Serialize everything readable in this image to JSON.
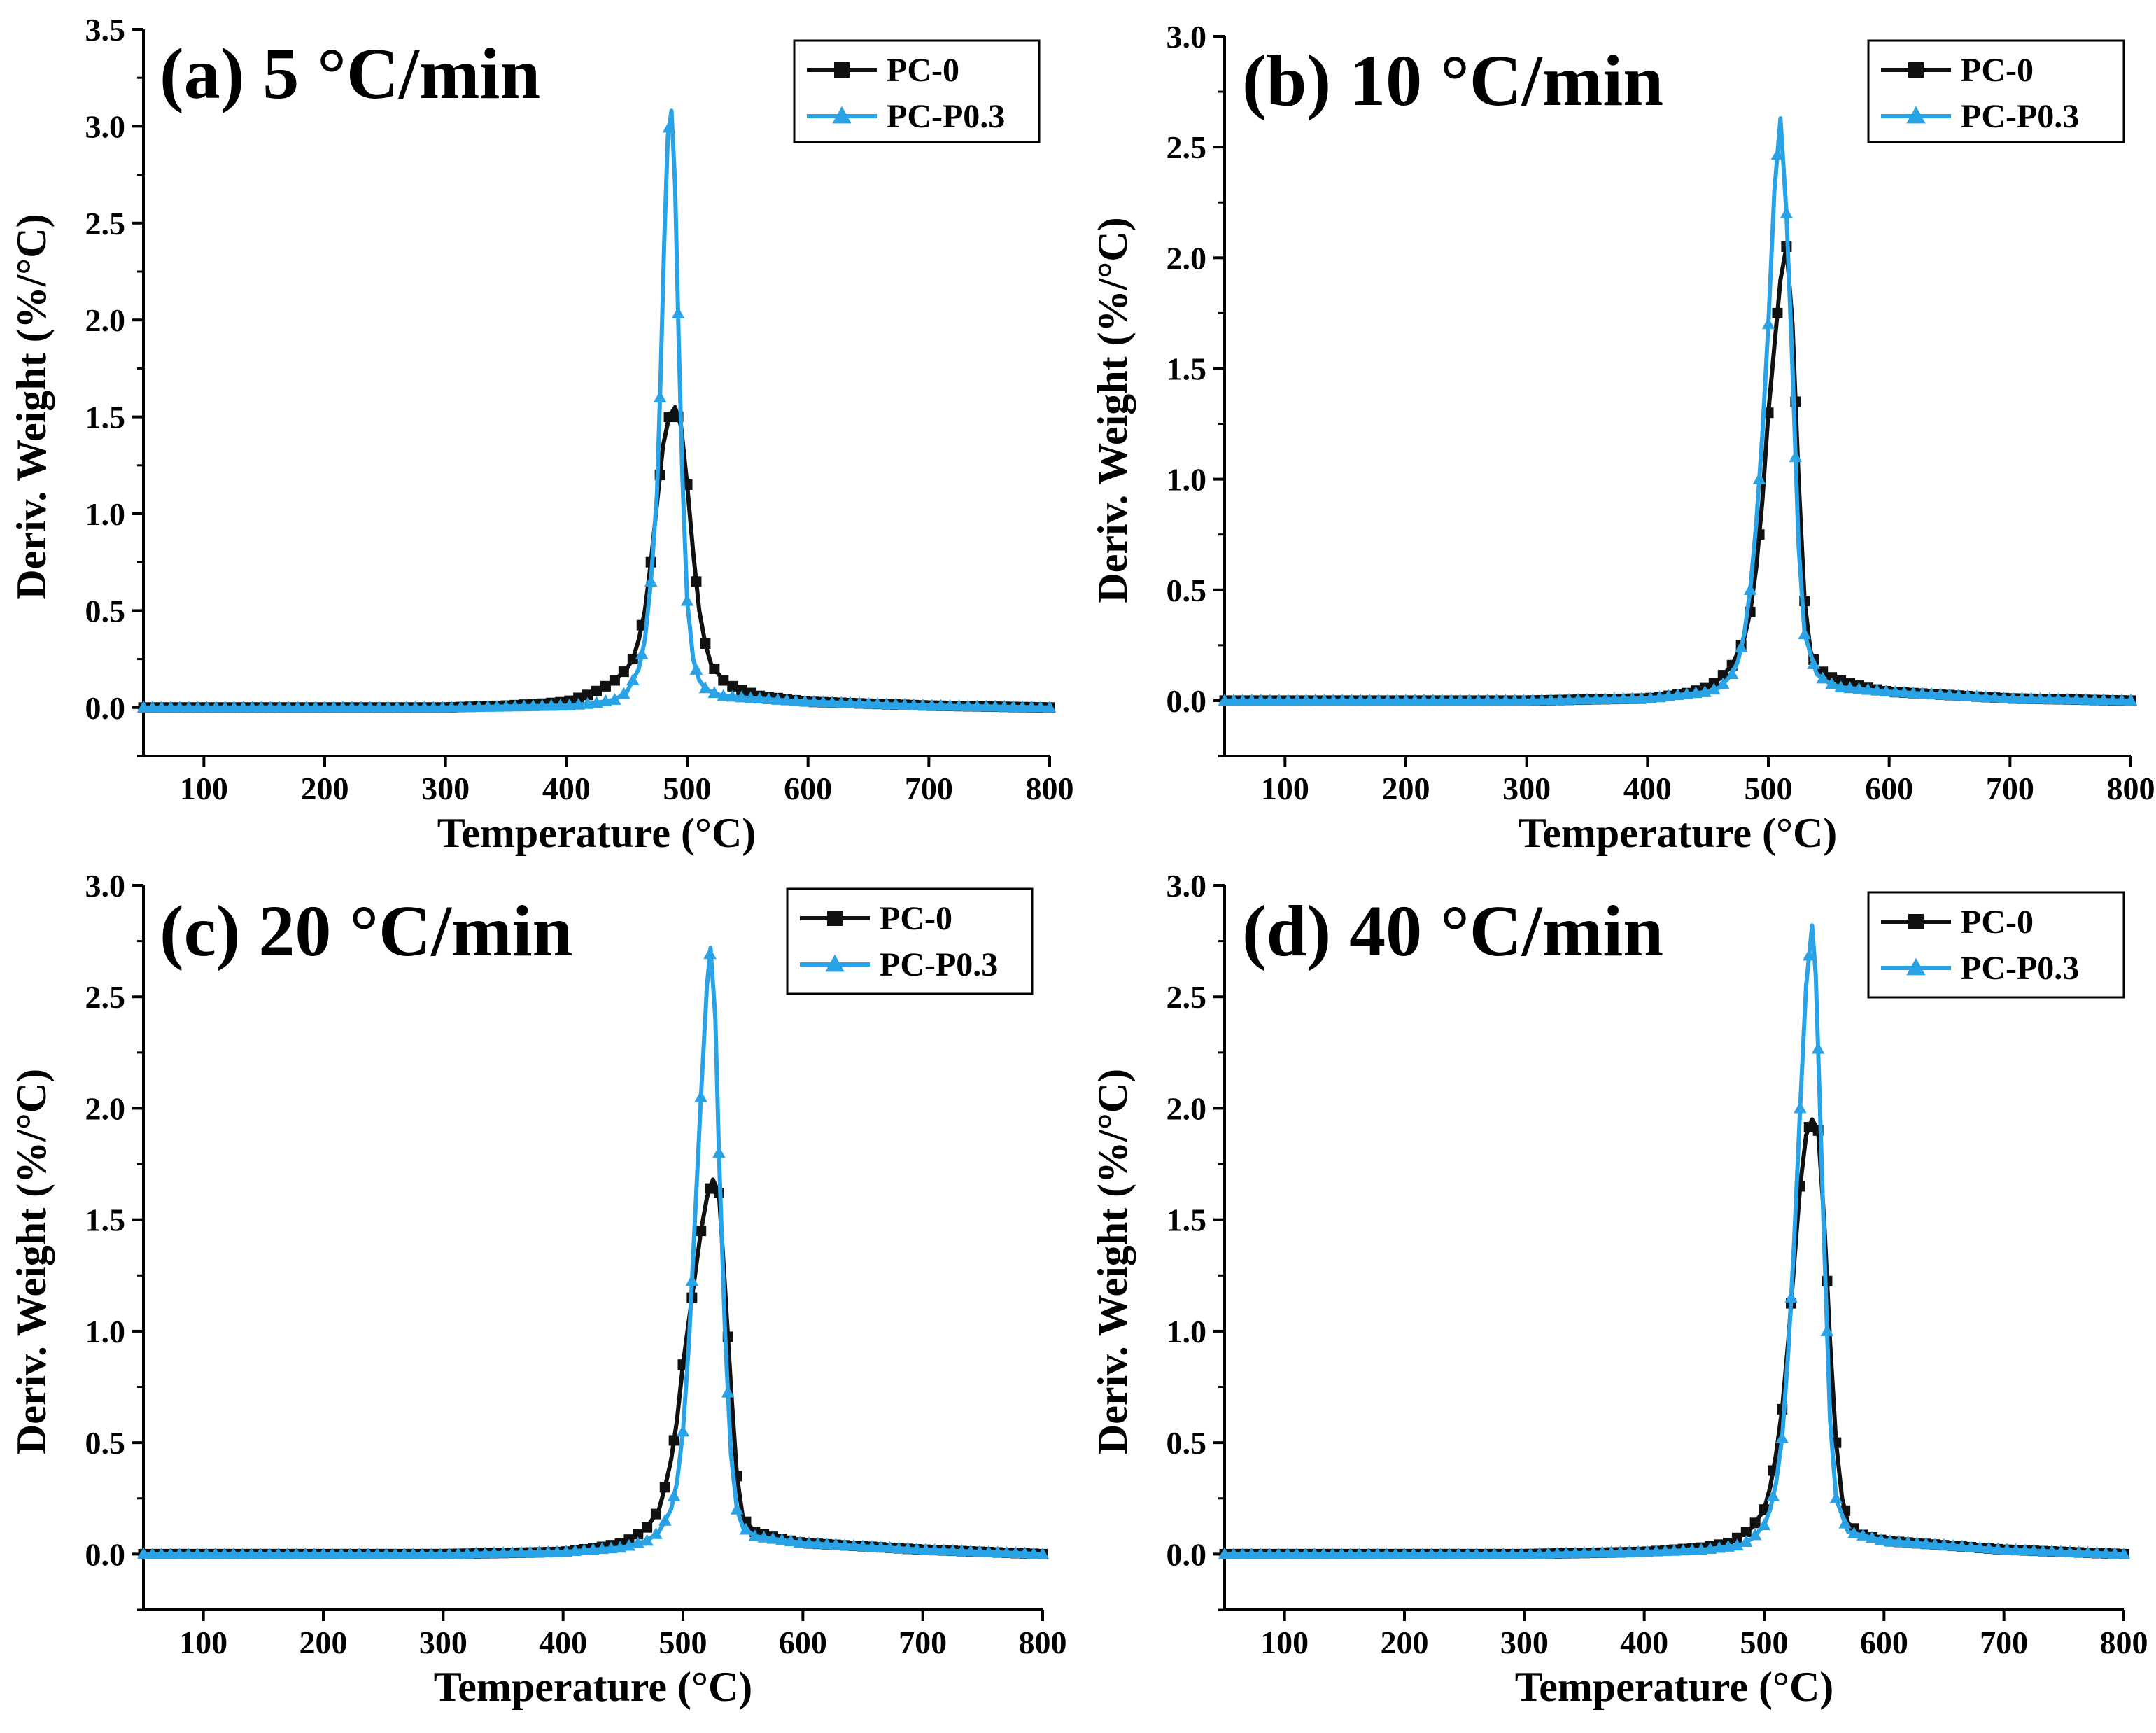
{
  "colors": {
    "pc0": "#111111",
    "pcp03": "#29a3e6",
    "axis": "#000000"
  },
  "series_meta": [
    {
      "key": "pc0",
      "name": "PC-0",
      "marker": "square"
    },
    {
      "key": "pcp03",
      "name": "PC-P0.3",
      "marker": "triangle"
    }
  ],
  "chart_data": [
    {
      "type": "line",
      "title": "(a) 5 °C/min",
      "xlabel": "Temperature (°C)",
      "ylabel": "Deriv. Weight (%/°C)",
      "xlim": [
        50,
        800
      ],
      "ylim": [
        -0.25,
        3.5
      ],
      "xticks": [
        100,
        200,
        300,
        400,
        500,
        600,
        700,
        800
      ],
      "yticks": [
        0.0,
        0.5,
        1.0,
        1.5,
        2.0,
        2.5,
        3.0,
        3.5
      ],
      "xtick_labels": [
        "100",
        "200",
        "300",
        "400",
        "500",
        "600",
        "700",
        "800"
      ],
      "ytick_labels": [
        "0.0",
        "0.5",
        "1.0",
        "1.5",
        "2.0",
        "2.5",
        "3.0",
        "3.5"
      ],
      "legend": [
        "PC-0",
        "PC-P0.3"
      ],
      "legend_position": "top-right",
      "series": [
        {
          "name": "PC-0",
          "x": [
            50,
            300,
            350,
            380,
            400,
            410,
            420,
            430,
            440,
            450,
            455,
            460,
            465,
            470,
            475,
            480,
            485,
            490,
            495,
            500,
            505,
            510,
            515,
            520,
            530,
            540,
            550,
            560,
            600,
            700,
            800
          ],
          "y": [
            0,
            0,
            0.01,
            0.02,
            0.03,
            0.05,
            0.07,
            0.1,
            0.14,
            0.2,
            0.25,
            0.35,
            0.5,
            0.75,
            1.05,
            1.35,
            1.5,
            1.55,
            1.45,
            1.15,
            0.8,
            0.5,
            0.33,
            0.22,
            0.14,
            0.1,
            0.08,
            0.06,
            0.03,
            0.01,
            0
          ]
        },
        {
          "name": "PC-P0.3",
          "x": [
            50,
            300,
            350,
            400,
            420,
            440,
            450,
            460,
            465,
            470,
            475,
            478,
            481,
            484,
            487,
            490,
            493,
            496,
            500,
            505,
            510,
            515,
            520,
            530,
            550,
            600,
            700,
            800
          ],
          "y": [
            0,
            0,
            0.005,
            0.01,
            0.02,
            0.04,
            0.08,
            0.2,
            0.35,
            0.65,
            1.1,
            1.7,
            2.4,
            2.95,
            3.08,
            2.7,
            1.9,
            1.2,
            0.55,
            0.25,
            0.14,
            0.1,
            0.08,
            0.06,
            0.05,
            0.03,
            0.01,
            0
          ]
        }
      ]
    },
    {
      "type": "line",
      "title": "(b) 10 °C/min",
      "xlabel": "Temperature (°C)",
      "ylabel": "Deriv. Weight (%/°C)",
      "xlim": [
        50,
        800
      ],
      "ylim": [
        -0.25,
        3.0
      ],
      "xticks": [
        100,
        200,
        300,
        400,
        500,
        600,
        700,
        800
      ],
      "yticks": [
        0.0,
        0.5,
        1.0,
        1.5,
        2.0,
        2.5,
        3.0
      ],
      "xtick_labels": [
        "100",
        "200",
        "300",
        "400",
        "500",
        "600",
        "700",
        "800"
      ],
      "ytick_labels": [
        "0.0",
        "0.5",
        "1.0",
        "1.5",
        "2.0",
        "2.5",
        "3.0"
      ],
      "legend": [
        "PC-0",
        "PC-P0.3"
      ],
      "legend_position": "top-right",
      "series": [
        {
          "name": "PC-0",
          "x": [
            50,
            300,
            400,
            430,
            450,
            460,
            470,
            480,
            485,
            490,
            495,
            500,
            505,
            510,
            515,
            520,
            525,
            530,
            535,
            540,
            550,
            560,
            580,
            600,
            700,
            800
          ],
          "y": [
            0,
            0,
            0.01,
            0.03,
            0.06,
            0.1,
            0.16,
            0.28,
            0.4,
            0.6,
            0.9,
            1.3,
            1.6,
            1.9,
            2.05,
            1.7,
            1.0,
            0.45,
            0.22,
            0.15,
            0.11,
            0.09,
            0.06,
            0.04,
            0.01,
            0
          ]
        },
        {
          "name": "PC-P0.3",
          "x": [
            50,
            300,
            400,
            450,
            460,
            470,
            475,
            480,
            485,
            490,
            495,
            500,
            505,
            510,
            515,
            520,
            525,
            530,
            540,
            550,
            560,
            600,
            700,
            800
          ],
          "y": [
            0,
            0,
            0.01,
            0.04,
            0.06,
            0.12,
            0.18,
            0.3,
            0.5,
            0.8,
            1.2,
            1.7,
            2.3,
            2.63,
            2.2,
            1.5,
            0.7,
            0.3,
            0.12,
            0.08,
            0.06,
            0.04,
            0.01,
            0
          ]
        }
      ]
    },
    {
      "type": "line",
      "title": "(c) 20 °C/min",
      "xlabel": "Temperature (°C)",
      "ylabel": "Deriv. Weight (%/°C)",
      "xlim": [
        50,
        800
      ],
      "ylim": [
        -0.25,
        3.0
      ],
      "xticks": [
        100,
        200,
        300,
        400,
        500,
        600,
        700,
        800
      ],
      "yticks": [
        0.0,
        0.5,
        1.0,
        1.5,
        2.0,
        2.5,
        3.0
      ],
      "xtick_labels": [
        "100",
        "200",
        "300",
        "400",
        "500",
        "600",
        "700",
        "800"
      ],
      "ytick_labels": [
        "0.0",
        "0.5",
        "1.0",
        "1.5",
        "2.0",
        "2.5",
        "3.0"
      ],
      "legend": [
        "PC-0",
        "PC-P0.3"
      ],
      "legend_position": "top-right",
      "series": [
        {
          "name": "PC-0",
          "x": [
            50,
            300,
            400,
            430,
            450,
            460,
            470,
            480,
            485,
            490,
            495,
            500,
            505,
            510,
            515,
            520,
            525,
            530,
            535,
            540,
            545,
            550,
            560,
            580,
            600,
            700,
            800
          ],
          "y": [
            0,
            0,
            0.01,
            0.03,
            0.05,
            0.08,
            0.12,
            0.2,
            0.3,
            0.42,
            0.6,
            0.85,
            1.05,
            1.25,
            1.45,
            1.6,
            1.68,
            1.62,
            1.2,
            0.75,
            0.35,
            0.16,
            0.1,
            0.07,
            0.05,
            0.02,
            0
          ]
        },
        {
          "name": "PC-P0.3",
          "x": [
            50,
            300,
            400,
            450,
            470,
            480,
            490,
            495,
            500,
            505,
            510,
            515,
            520,
            523,
            527,
            530,
            535,
            540,
            545,
            550,
            560,
            600,
            700,
            800
          ],
          "y": [
            0,
            0,
            0.01,
            0.03,
            0.06,
            0.1,
            0.2,
            0.32,
            0.55,
            0.95,
            1.5,
            2.05,
            2.55,
            2.72,
            2.4,
            1.8,
            1.0,
            0.45,
            0.2,
            0.12,
            0.08,
            0.05,
            0.02,
            0
          ]
        }
      ]
    },
    {
      "type": "line",
      "title": "(d) 40 °C/min",
      "xlabel": "Temperature (°C)",
      "ylabel": "Deriv. Weight (%/°C)",
      "xlim": [
        50,
        800
      ],
      "ylim": [
        -0.25,
        3.0
      ],
      "xticks": [
        100,
        200,
        300,
        400,
        500,
        600,
        700,
        800
      ],
      "yticks": [
        0.0,
        0.5,
        1.0,
        1.5,
        2.0,
        2.5,
        3.0
      ],
      "xtick_labels": [
        "100",
        "200",
        "300",
        "400",
        "500",
        "600",
        "700",
        "800"
      ],
      "ytick_labels": [
        "0.0",
        "0.5",
        "1.0",
        "1.5",
        "2.0",
        "2.5",
        "3.0"
      ],
      "legend": [
        "PC-0",
        "PC-P0.3"
      ],
      "legend_position": "top-right",
      "series": [
        {
          "name": "PC-0",
          "x": [
            50,
            300,
            400,
            450,
            470,
            480,
            490,
            500,
            505,
            510,
            515,
            520,
            525,
            530,
            535,
            540,
            545,
            550,
            555,
            560,
            565,
            570,
            580,
            600,
            700,
            800
          ],
          "y": [
            0,
            0,
            0.01,
            0.03,
            0.05,
            0.08,
            0.12,
            0.2,
            0.3,
            0.45,
            0.65,
            0.95,
            1.3,
            1.65,
            1.88,
            1.95,
            1.9,
            1.5,
            0.95,
            0.5,
            0.25,
            0.14,
            0.09,
            0.06,
            0.02,
            0
          ]
        },
        {
          "name": "PC-P0.3",
          "x": [
            50,
            300,
            400,
            450,
            480,
            490,
            500,
            505,
            510,
            515,
            520,
            525,
            530,
            535,
            540,
            543,
            546,
            550,
            555,
            560,
            570,
            600,
            700,
            800
          ],
          "y": [
            0,
            0,
            0.01,
            0.02,
            0.04,
            0.07,
            0.13,
            0.2,
            0.32,
            0.52,
            0.9,
            1.4,
            2.0,
            2.55,
            2.82,
            2.6,
            2.1,
            1.4,
            0.6,
            0.25,
            0.1,
            0.06,
            0.02,
            0
          ]
        }
      ]
    }
  ]
}
